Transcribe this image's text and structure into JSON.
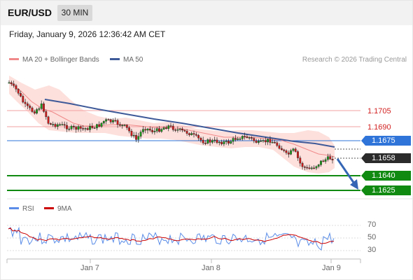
{
  "header": {
    "pair": "EUR/USD",
    "timeframe": "30 MIN"
  },
  "datetime": "Friday, January 9, 2026 12:36:42 AM CET",
  "legend": {
    "ma20": "MA 20 + Bollinger Bands",
    "ma50": "MA 50",
    "copyright": "Research © 2026 Trading Central"
  },
  "levels": {
    "r2": "1.1705",
    "r1": "1.1690",
    "pivot": "1.1675",
    "current": "1.1658",
    "s1": "1.1640",
    "s2": "1.1625"
  },
  "rsi": {
    "label": "RSI",
    "ma_label": "9MA",
    "ticks": [
      "70",
      "50",
      "30"
    ]
  },
  "xaxis": {
    "ticks": [
      "Jan 7",
      "Jan 8",
      "Jan 9"
    ]
  },
  "colors": {
    "ma20": "#f08a8a",
    "ma50": "#3f5a99",
    "rsi": "#5b8de8",
    "rsi_ma": "#cc0000",
    "pivot": "#2f74d8",
    "support": "#118a11",
    "resistance": "#f2a0a0",
    "bands": "#fde0dc"
  }
}
